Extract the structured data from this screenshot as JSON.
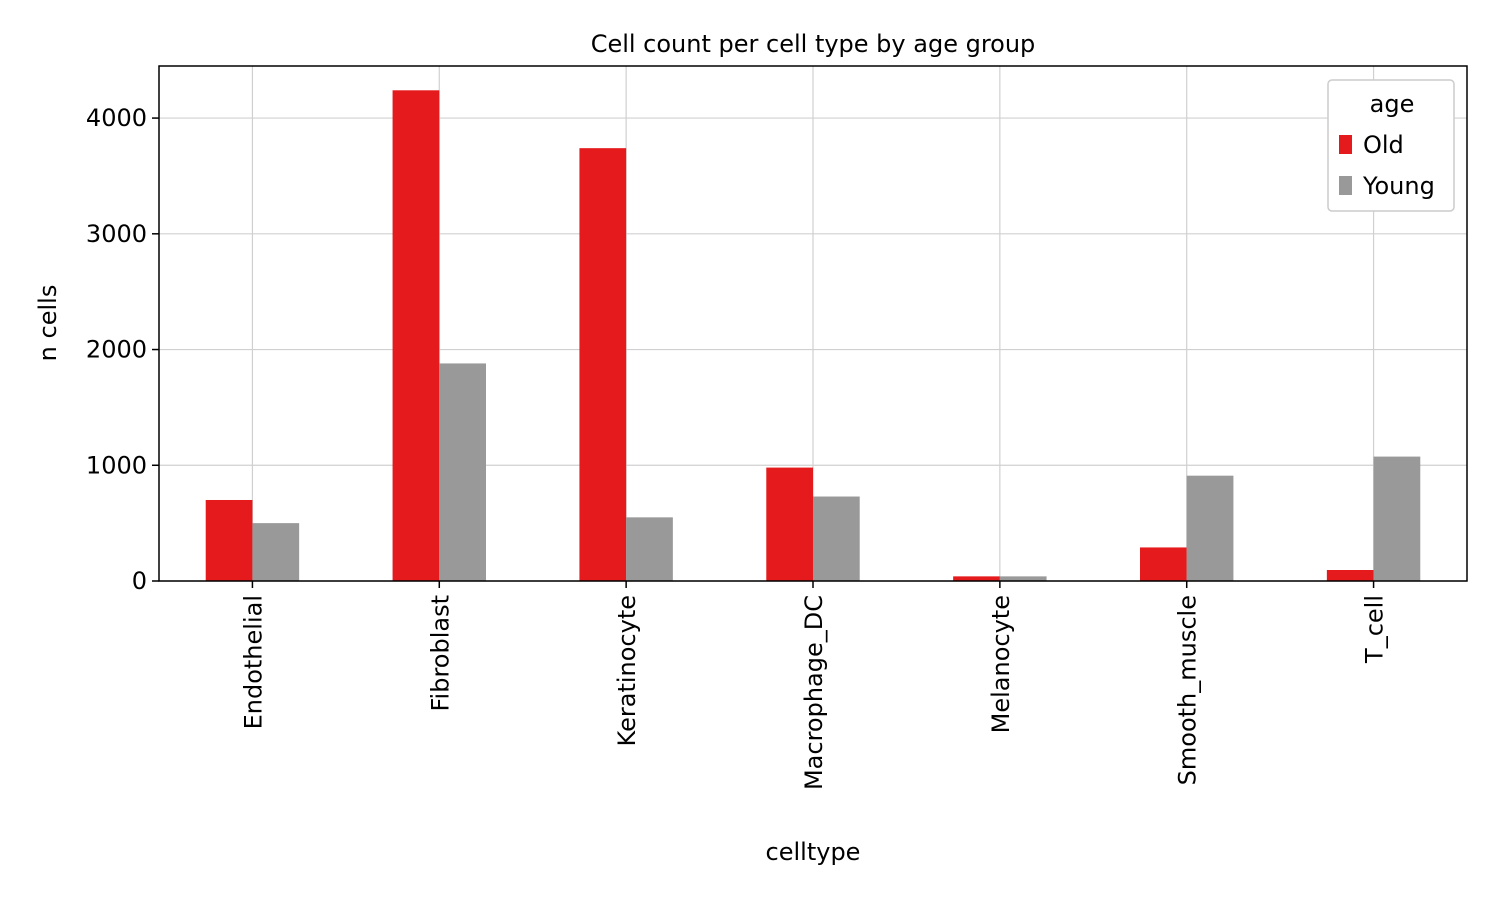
{
  "chart_data": {
    "type": "bar",
    "title": "Cell count per cell type by age group",
    "xlabel": "celltype",
    "ylabel": "n cells",
    "categories": [
      "Endothelial",
      "Fibroblast",
      "Keratinocyte",
      "Macrophage_DC",
      "Melanocyte",
      "Smooth_muscle",
      "T_cell"
    ],
    "series": [
      {
        "name": "Old",
        "color": "#e41a1c",
        "values": [
          700,
          4240,
          3740,
          980,
          40,
          290,
          95
        ]
      },
      {
        "name": "Young",
        "color": "#999999",
        "values": [
          500,
          1880,
          550,
          730,
          40,
          910,
          1075
        ]
      }
    ],
    "ylim": [
      0,
      4450
    ],
    "yticks": [
      0,
      1000,
      2000,
      3000,
      4000
    ],
    "grid": true,
    "legend": {
      "title": "age",
      "position": "top-right"
    }
  }
}
